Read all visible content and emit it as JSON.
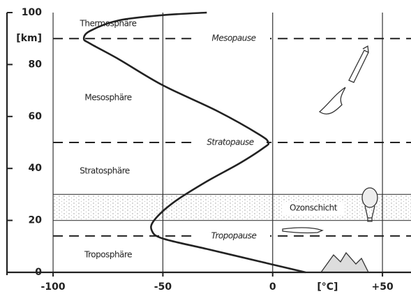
{
  "chart_data": {
    "type": "line",
    "xlabel": "[°C]",
    "ylabel": "[km]",
    "x": [
      15,
      -5,
      -30,
      -50,
      -55,
      -54,
      -45,
      -30,
      -15,
      -4,
      -2,
      -6,
      -25,
      -50,
      -70,
      -83,
      -86,
      -83,
      -70,
      -50,
      -30
    ],
    "series": [
      {
        "name": null,
        "color": "#222222",
        "values": [
          0,
          4,
          9,
          13,
          16,
          20,
          27,
          35,
          42,
          48,
          50,
          53,
          62,
          72,
          82,
          88,
          90,
          93,
          97,
          99,
          100
        ]
      }
    ],
    "xlim": [
      -121,
      63
    ],
    "ylim": [
      0,
      100
    ],
    "xticks": [
      -100,
      -50,
      0,
      {
        "value": 50,
        "label": "+50"
      }
    ],
    "yticks": [
      0,
      20,
      40,
      60,
      80,
      100
    ],
    "grid": true,
    "layers": [
      "Thermosphäre",
      "Mesosphäre",
      "Stratosphäre",
      "Troposphäre"
    ],
    "boundaries": [
      {
        "label": "Mesopause",
        "value": 90
      },
      {
        "label": "Stratopause",
        "value": 50
      },
      {
        "label": "Tropopause",
        "value": 14
      }
    ],
    "band": {
      "label": "Ozonschicht",
      "range": [
        20,
        30
      ]
    }
  }
}
